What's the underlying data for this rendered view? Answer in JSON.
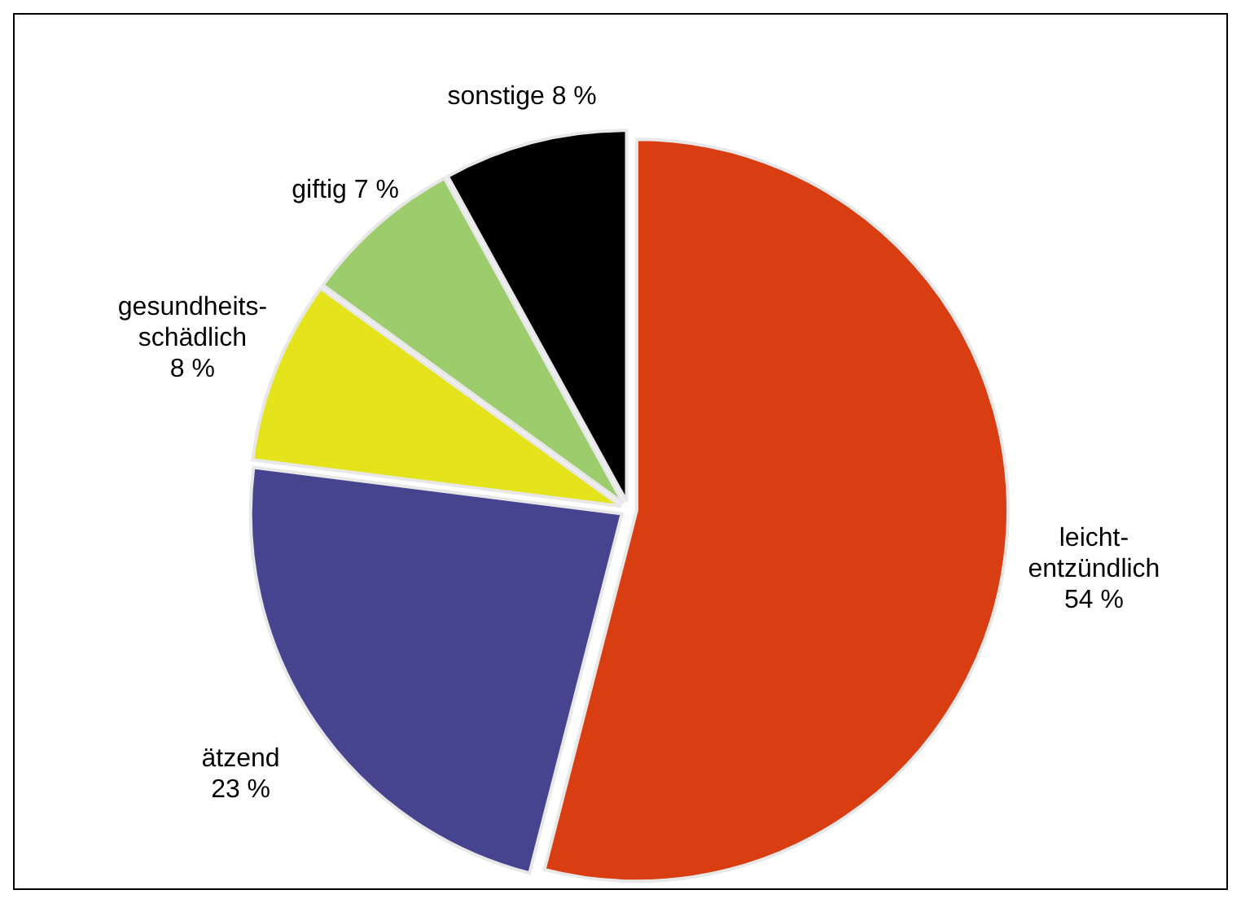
{
  "chart_data": {
    "type": "pie",
    "categories": [
      "leicht-\nentzündlich",
      "ätzend",
      "gesundheits-\nschädlich",
      "giftig",
      "sonstige"
    ],
    "values": [
      54,
      23,
      8,
      7,
      8
    ],
    "value_labels": [
      "54 %",
      "23 %",
      "8 %",
      "7 %",
      "8 %"
    ],
    "colors": [
      "#d93d12",
      "#47448f",
      "#e5e31c",
      "#9ccc6c",
      "#000000"
    ]
  }
}
